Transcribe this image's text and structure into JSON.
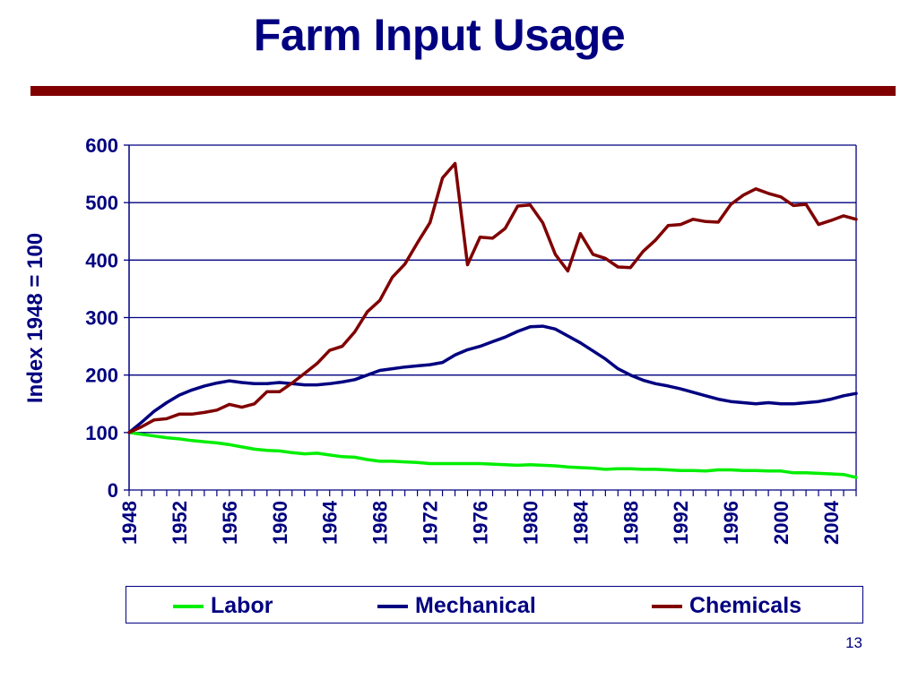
{
  "slide": {
    "title": "Farm Input Usage",
    "page_number": "13",
    "colors": {
      "title": "#000080",
      "rule": "#800000",
      "axis": "#000080",
      "grid": "#000080"
    }
  },
  "legend": {
    "items": [
      {
        "label": "Labor",
        "color": "#00ee00"
      },
      {
        "label": "Mechanical",
        "color": "#000080"
      },
      {
        "label": "Chemicals",
        "color": "#800000"
      }
    ]
  },
  "chart_data": {
    "type": "line",
    "title": "Farm Input Usage",
    "xlabel": "",
    "ylabel": "Index 1948 = 100",
    "ylim": [
      0,
      600
    ],
    "yticks": [
      0,
      100,
      200,
      300,
      400,
      500,
      600
    ],
    "xtick_labels": [
      "1948",
      "1952",
      "1956",
      "1960",
      "1964",
      "1968",
      "1972",
      "1976",
      "1980",
      "1984",
      "1988",
      "1992",
      "1996",
      "2000",
      "2004"
    ],
    "grid": true,
    "legend_position": "bottom",
    "x": [
      1948,
      1949,
      1950,
      1951,
      1952,
      1953,
      1954,
      1955,
      1956,
      1957,
      1958,
      1959,
      1960,
      1961,
      1962,
      1963,
      1964,
      1965,
      1966,
      1967,
      1968,
      1969,
      1970,
      1971,
      1972,
      1973,
      1974,
      1975,
      1976,
      1977,
      1978,
      1979,
      1980,
      1981,
      1982,
      1983,
      1984,
      1985,
      1986,
      1987,
      1988,
      1989,
      1990,
      1991,
      1992,
      1993,
      1994,
      1995,
      1996,
      1997,
      1998,
      1999,
      2000,
      2001,
      2002,
      2003,
      2004,
      2005,
      2006
    ],
    "series": [
      {
        "name": "Labor",
        "color": "#00ee00",
        "values": [
          100,
          97,
          94,
          91,
          89,
          86,
          84,
          82,
          79,
          75,
          71,
          69,
          68,
          65,
          63,
          64,
          61,
          58,
          57,
          53,
          50,
          50,
          49,
          48,
          46,
          46,
          46,
          46,
          46,
          45,
          44,
          43,
          44,
          43,
          42,
          40,
          39,
          38,
          36,
          37,
          37,
          36,
          36,
          35,
          34,
          34,
          33,
          35,
          35,
          34,
          34,
          33,
          33,
          30,
          30,
          29,
          28,
          27,
          22
        ]
      },
      {
        "name": "Mechanical",
        "color": "#000080",
        "values": [
          100,
          118,
          137,
          152,
          165,
          174,
          181,
          186,
          190,
          187,
          185,
          185,
          187,
          185,
          183,
          183,
          185,
          188,
          192,
          200,
          208,
          211,
          214,
          216,
          218,
          222,
          235,
          244,
          250,
          258,
          266,
          276,
          284,
          285,
          280,
          268,
          256,
          242,
          228,
          211,
          200,
          191,
          185,
          181,
          176,
          170,
          164,
          158,
          154,
          152,
          150,
          152,
          150,
          150,
          152,
          154,
          158,
          164,
          168
        ]
      },
      {
        "name": "Chemicals",
        "color": "#800000",
        "values": [
          100,
          110,
          122,
          124,
          132,
          132,
          135,
          139,
          149,
          144,
          150,
          171,
          171,
          186,
          203,
          220,
          243,
          250,
          275,
          310,
          330,
          370,
          393,
          430,
          465,
          543,
          568,
          392,
          440,
          438,
          455,
          494,
          496,
          465,
          410,
          381,
          446,
          410,
          403,
          388,
          387,
          415,
          435,
          460,
          462,
          471,
          467,
          466,
          497,
          513,
          524,
          516,
          510,
          495,
          497,
          462,
          469,
          477,
          471
        ]
      }
    ]
  }
}
